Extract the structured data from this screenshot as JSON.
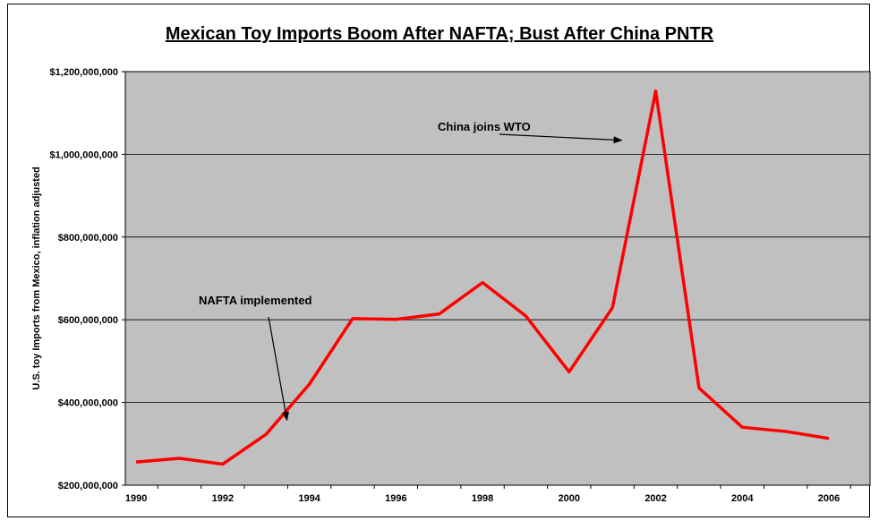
{
  "chart_data": {
    "type": "line",
    "title": "Mexican Toy Imports Boom After NAFTA; Bust After China PNTR",
    "xlabel": "",
    "ylabel": "U.S. toy Imports from Mexico, inflation adjusted",
    "x": [
      1990,
      1991,
      1992,
      1993,
      1994,
      1995,
      1996,
      1997,
      1998,
      1999,
      2000,
      2001,
      2002,
      2003,
      2004,
      2005,
      2006
    ],
    "x_tick_labels": [
      "1990",
      "1992",
      "1994",
      "1996",
      "1998",
      "2000",
      "2002",
      "2004",
      "2006"
    ],
    "y_tick_labels": [
      "$200,000,000",
      "$400,000,000",
      "$600,000,000",
      "$800,000,000",
      "$1,000,000,000",
      "$1,200,000,000"
    ],
    "series": [
      {
        "values": [
          256000000,
          265000000,
          251000000,
          323000000,
          444000000,
          603000000,
          601000000,
          614000000,
          690000000,
          609000000,
          474000000,
          629000000,
          1153000000,
          435000000,
          340000000,
          330000000,
          313000000
        ]
      }
    ],
    "ylim": [
      200000000,
      1200000000
    ],
    "grid": "horizontal",
    "line_color": "#ff0000",
    "plot_background": "#c0c0c0",
    "annotations": [
      {
        "text": "NAFTA implemented",
        "x": 1994,
        "y": 444000000
      },
      {
        "text": "China joins WTO",
        "x": 2002,
        "y": 1153000000
      }
    ]
  }
}
